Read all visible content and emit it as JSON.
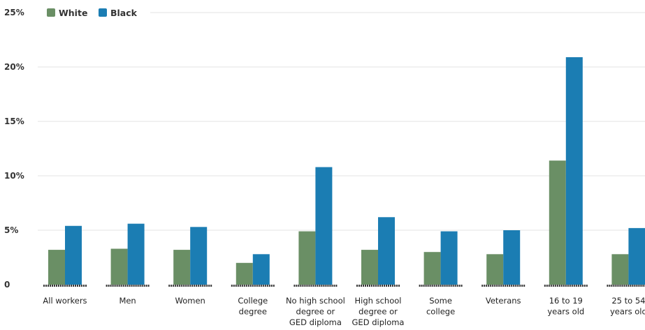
{
  "chart_data": {
    "type": "bar",
    "title": "",
    "xlabel": "",
    "ylabel": "",
    "ylim": [
      0,
      25
    ],
    "y_ticks": [
      {
        "value": 0,
        "label": "0"
      },
      {
        "value": 5,
        "label": "5%"
      },
      {
        "value": 10,
        "label": "10%"
      },
      {
        "value": 15,
        "label": "15%"
      },
      {
        "value": 20,
        "label": "20%"
      },
      {
        "value": 25,
        "label": "25%"
      }
    ],
    "grid": true,
    "legend": "top-left",
    "categories": [
      [
        "All workers"
      ],
      [
        "Men"
      ],
      [
        "Women"
      ],
      [
        "College",
        "degree"
      ],
      [
        "No high school",
        "degree or",
        "GED diploma"
      ],
      [
        "High school",
        "degree or",
        "GED diploma"
      ],
      [
        "Some",
        "college"
      ],
      [
        "Veterans"
      ],
      [
        "16 to 19",
        "years old"
      ],
      [
        "25 to 54",
        "years old"
      ]
    ],
    "series": [
      {
        "name": "White",
        "color": "#6a8f65",
        "values": [
          3.2,
          3.3,
          3.2,
          2.0,
          4.9,
          3.2,
          3.0,
          2.8,
          11.4,
          2.8
        ]
      },
      {
        "name": "Black",
        "color": "#1b7db3",
        "values": [
          5.4,
          5.6,
          5.3,
          2.8,
          10.8,
          6.2,
          4.9,
          5.0,
          20.9,
          5.2
        ]
      }
    ]
  }
}
